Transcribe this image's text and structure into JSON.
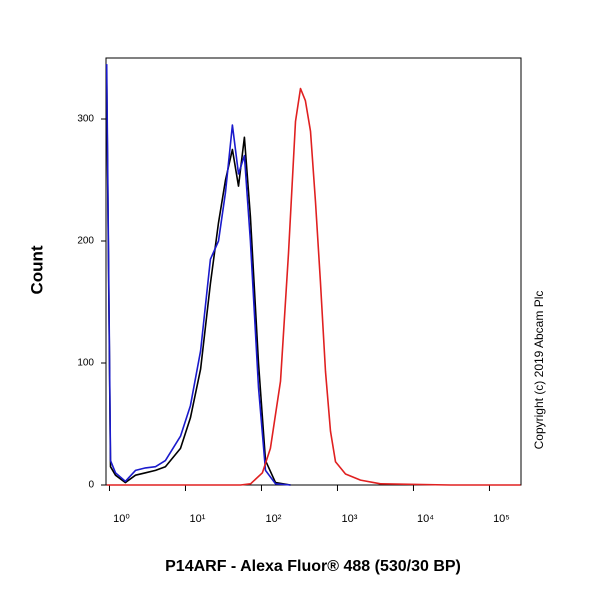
{
  "chart_data": {
    "type": "line",
    "x_label": "P14ARF - Alexa Fluor® 488 (530/30 BP)",
    "y_label": "Count",
    "annotation": "Copyright (c) 2019 Abcam Plc",
    "x_scale": "log",
    "xlim": [
      0.9,
      260000
    ],
    "xticks": [
      {
        "value": 1,
        "label": "10⁰"
      },
      {
        "value": 10,
        "label": "10¹"
      },
      {
        "value": 100,
        "label": "10²"
      },
      {
        "value": 1000,
        "label": "10³"
      },
      {
        "value": 10000,
        "label": "10⁴"
      },
      {
        "value": 100000,
        "label": "10⁵"
      }
    ],
    "ylim": [
      0,
      350
    ],
    "yticks": [
      0,
      100,
      200,
      300
    ],
    "series": [
      {
        "color": "#000000",
        "x": [
          0.92,
          1.03,
          1.2,
          1.62,
          2.2,
          2.98,
          4.03,
          5.45,
          8.6,
          11.6,
          15.8,
          21.3,
          27.2,
          33.6,
          41.5,
          49.8,
          59.7,
          71.6,
          91.4,
          113,
          153,
          241
        ],
        "values": [
          330,
          15,
          8,
          2,
          8,
          10,
          12,
          15,
          30,
          55,
          95,
          165,
          215,
          250,
          275,
          245,
          285,
          220,
          100,
          20,
          2,
          0
        ]
      },
      {
        "color": "#1a1acc",
        "x": [
          0.92,
          1.03,
          1.2,
          1.62,
          2.2,
          2.98,
          4.03,
          5.45,
          8.6,
          11.6,
          15.8,
          21.3,
          27.2,
          33.6,
          41.5,
          49.8,
          59.7,
          71.6,
          91.4,
          113,
          153,
          241
        ],
        "values": [
          345,
          20,
          10,
          3,
          12,
          14,
          15,
          20,
          40,
          65,
          110,
          185,
          200,
          240,
          295,
          255,
          270,
          200,
          80,
          12,
          1,
          0
        ]
      },
      {
        "color": "#e02020",
        "x": [
          0.92,
          53,
          72,
          103,
          131,
          178,
          227,
          280,
          326,
          379,
          442,
          514,
          597,
          695,
          809,
          942,
          1275,
          2009,
          3680,
          30700,
          256000
        ],
        "values": [
          0,
          0,
          1,
          10,
          30,
          85,
          190,
          298,
          325,
          315,
          290,
          232,
          167,
          93,
          44,
          19,
          9,
          4,
          1,
          0,
          0
        ]
      }
    ]
  }
}
